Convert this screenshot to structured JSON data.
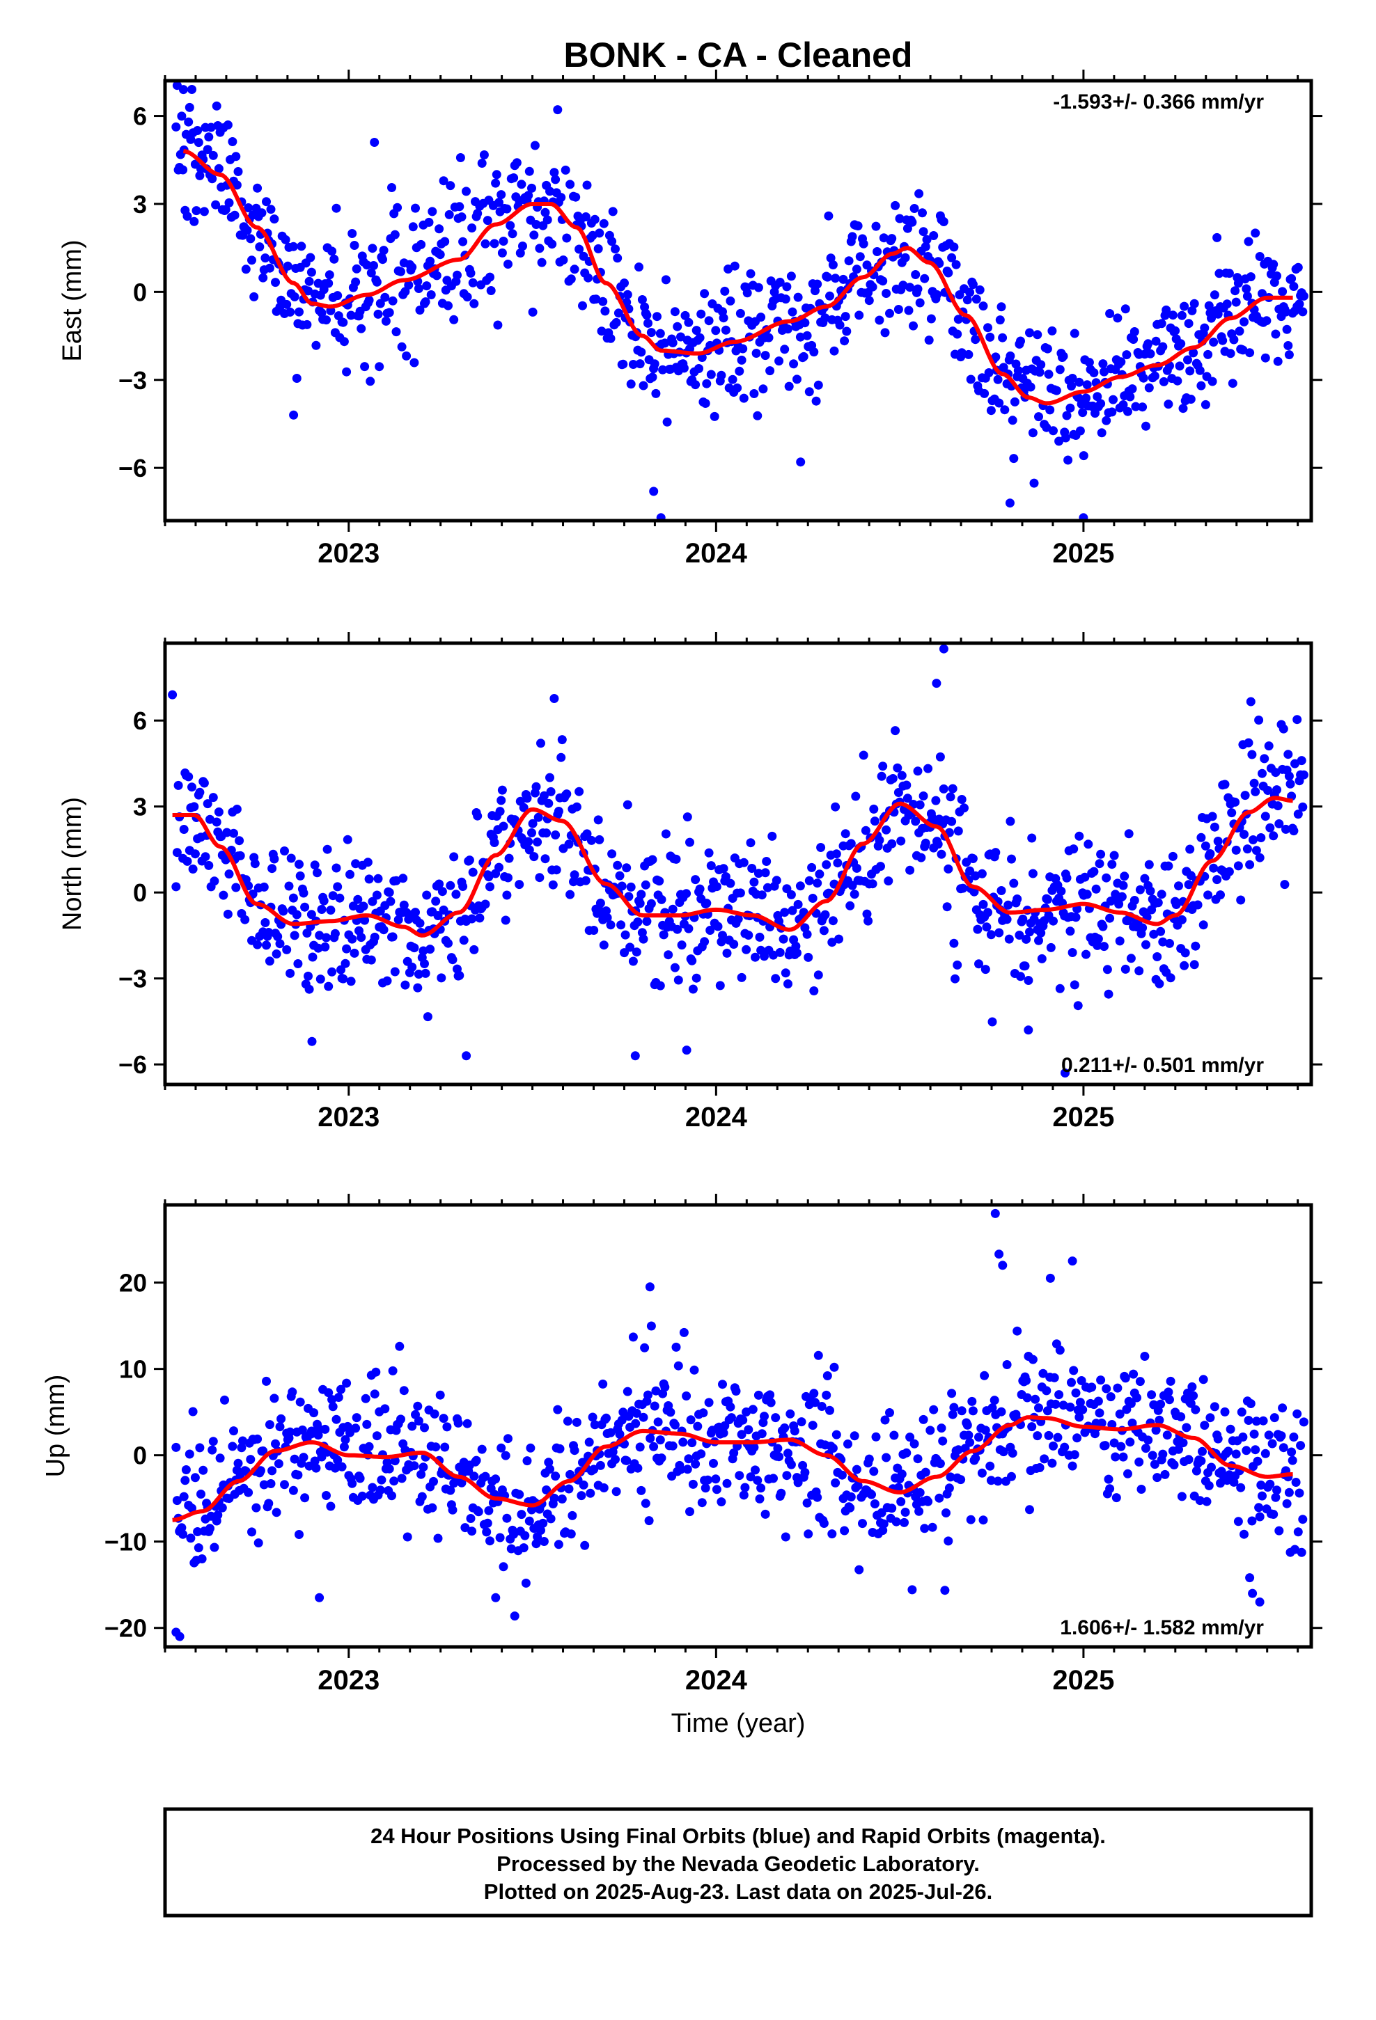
{
  "title": "BONK  - CA - Cleaned",
  "xlabel": "Time (year)",
  "footer": {
    "line1": "24 Hour Positions Using Final Orbits (blue) and Rapid Orbits (magenta).",
    "line2": "Processed by the Nevada Geodetic Laboratory.",
    "line3": "Plotted on 2025-Aug-23. Last data on 2025-Jul-26."
  },
  "colors": {
    "points": "#0000ff",
    "model": "#ff0000",
    "axes": "#000000"
  },
  "chart_data": [
    {
      "type": "scatter",
      "component": "east",
      "ylabel": "East (mm)",
      "rate_label": "-1.593+/- 0.366 mm/yr",
      "rate_position": "top-right",
      "xlim": [
        2022.5,
        2025.62
      ],
      "ylim": [
        -7.8,
        7.2
      ],
      "xticks": [
        2023,
        2024,
        2025
      ],
      "xtick_labels": [
        "2023",
        "2024",
        "2025"
      ],
      "yticks": [
        -6,
        -3,
        0,
        3,
        6
      ],
      "ytick_labels": [
        "−6",
        "−3",
        "0",
        "3",
        "6"
      ],
      "grid": false,
      "series": [
        {
          "kind": "model",
          "x": [
            2022.55,
            2022.65,
            2022.75,
            2022.85,
            2022.9,
            2022.95,
            2023.05,
            2023.15,
            2023.3,
            2023.4,
            2023.5,
            2023.55,
            2023.62,
            2023.7,
            2023.8,
            2023.85,
            2023.95,
            2024.05,
            2024.2,
            2024.3,
            2024.4,
            2024.48,
            2024.52,
            2024.58,
            2024.68,
            2024.78,
            2024.85,
            2024.9,
            2025.0,
            2025.1,
            2025.2,
            2025.3,
            2025.4,
            2025.5,
            2025.57
          ],
          "y": [
            4.8,
            4.0,
            2.2,
            0.3,
            -0.4,
            -0.5,
            -0.1,
            0.4,
            1.1,
            2.3,
            3.0,
            3.0,
            2.2,
            0.3,
            -1.5,
            -2.0,
            -2.1,
            -1.7,
            -1.0,
            -0.5,
            0.5,
            1.3,
            1.5,
            1.0,
            -0.8,
            -2.8,
            -3.6,
            -3.8,
            -3.4,
            -2.9,
            -2.5,
            -1.9,
            -0.9,
            -0.2,
            -0.2
          ]
        },
        {
          "kind": "daily",
          "noise_sigma": 1.2,
          "outliers": [
            {
              "x": 2022.85,
              "y": -4.2
            },
            {
              "x": 2023.85,
              "y": -7.7
            },
            {
              "x": 2023.83,
              "y": -6.8
            },
            {
              "x": 2024.23,
              "y": -5.8
            },
            {
              "x": 2025.0,
              "y": -7.7
            },
            {
              "x": 2024.8,
              "y": -7.2
            },
            {
              "x": 2022.55,
              "y": 6.9
            },
            {
              "x": 2023.07,
              "y": 5.1
            }
          ]
        }
      ]
    },
    {
      "type": "scatter",
      "component": "north",
      "ylabel": "North (mm)",
      "rate_label": "0.211+/- 0.501 mm/yr",
      "rate_position": "bottom-right",
      "xlim": [
        2022.5,
        2025.62
      ],
      "ylim": [
        -6.7,
        8.7
      ],
      "xticks": [
        2023,
        2024,
        2025
      ],
      "xtick_labels": [
        "2023",
        "2024",
        "2025"
      ],
      "yticks": [
        -6,
        -3,
        0,
        3,
        6
      ],
      "ytick_labels": [
        "−6",
        "−3",
        "0",
        "3",
        "6"
      ],
      "grid": false,
      "series": [
        {
          "kind": "model",
          "x": [
            2022.52,
            2022.58,
            2022.65,
            2022.75,
            2022.85,
            2022.95,
            2023.05,
            2023.15,
            2023.2,
            2023.3,
            2023.4,
            2023.5,
            2023.58,
            2023.7,
            2023.8,
            2023.9,
            2024.0,
            2024.1,
            2024.2,
            2024.3,
            2024.4,
            2024.5,
            2024.6,
            2024.7,
            2024.8,
            2024.9,
            2025.0,
            2025.1,
            2025.2,
            2025.25,
            2025.35,
            2025.45,
            2025.52,
            2025.57
          ],
          "y": [
            2.7,
            2.7,
            1.6,
            -0.4,
            -1.1,
            -1.0,
            -0.8,
            -1.2,
            -1.5,
            -0.7,
            1.3,
            2.9,
            2.5,
            0.3,
            -0.8,
            -0.8,
            -0.6,
            -0.8,
            -1.3,
            -0.3,
            1.7,
            3.1,
            2.3,
            0.2,
            -0.7,
            -0.6,
            -0.4,
            -0.7,
            -1.1,
            -0.8,
            1.1,
            2.8,
            3.3,
            3.2
          ]
        },
        {
          "kind": "daily",
          "noise_sigma": 1.25,
          "outliers": [
            {
              "x": 2022.52,
              "y": 6.9
            },
            {
              "x": 2024.6,
              "y": 7.3
            },
            {
              "x": 2024.62,
              "y": 8.5
            },
            {
              "x": 2022.9,
              "y": -5.2
            },
            {
              "x": 2023.32,
              "y": -5.7
            },
            {
              "x": 2023.78,
              "y": -5.7
            },
            {
              "x": 2023.92,
              "y": -5.5
            },
            {
              "x": 2024.95,
              "y": -6.3
            },
            {
              "x": 2024.85,
              "y": -4.8
            }
          ]
        }
      ]
    },
    {
      "type": "scatter",
      "component": "up",
      "ylabel": "Up (mm)",
      "rate_label": "1.606+/- 1.582 mm/yr",
      "rate_position": "bottom-right",
      "xlim": [
        2022.5,
        2025.62
      ],
      "ylim": [
        -22.2,
        29.0
      ],
      "xticks": [
        2023,
        2024,
        2025
      ],
      "xtick_labels": [
        "2023",
        "2024",
        "2025"
      ],
      "yticks": [
        -20,
        -10,
        0,
        10,
        20
      ],
      "ytick_labels": [
        "−20",
        "−10",
        "0",
        "10",
        "20"
      ],
      "grid": false,
      "series": [
        {
          "kind": "model",
          "x": [
            2022.52,
            2022.6,
            2022.7,
            2022.8,
            2022.9,
            2023.0,
            2023.1,
            2023.2,
            2023.3,
            2023.4,
            2023.5,
            2023.6,
            2023.7,
            2023.8,
            2023.9,
            2024.0,
            2024.1,
            2024.2,
            2024.3,
            2024.4,
            2024.5,
            2024.6,
            2024.7,
            2024.8,
            2024.85,
            2024.9,
            2025.0,
            2025.1,
            2025.2,
            2025.3,
            2025.4,
            2025.5,
            2025.57
          ],
          "y": [
            -7.5,
            -6.5,
            -3.0,
            0.5,
            1.5,
            0.0,
            -0.2,
            0.3,
            -2.5,
            -5.0,
            -5.8,
            -3.0,
            1.0,
            2.8,
            2.5,
            1.5,
            1.5,
            1.8,
            0.0,
            -3.0,
            -4.3,
            -2.5,
            0.5,
            3.5,
            4.4,
            4.3,
            3.3,
            3.0,
            3.5,
            2.0,
            -1.2,
            -2.5,
            -2.2
          ]
        },
        {
          "kind": "daily",
          "noise_sigma": 4.2,
          "outliers": [
            {
              "x": 2024.76,
              "y": 28.0
            },
            {
              "x": 2024.77,
              "y": 23.3
            },
            {
              "x": 2024.78,
              "y": 22.0
            },
            {
              "x": 2024.97,
              "y": 22.5
            },
            {
              "x": 2024.91,
              "y": 20.5
            },
            {
              "x": 2023.82,
              "y": 19.5
            },
            {
              "x": 2022.53,
              "y": -20.5
            },
            {
              "x": 2022.54,
              "y": -21.0
            },
            {
              "x": 2025.48,
              "y": -17.0
            },
            {
              "x": 2025.46,
              "y": -16.0
            },
            {
              "x": 2023.4,
              "y": -16.5
            },
            {
              "x": 2022.92,
              "y": -16.5
            }
          ]
        }
      ]
    }
  ]
}
